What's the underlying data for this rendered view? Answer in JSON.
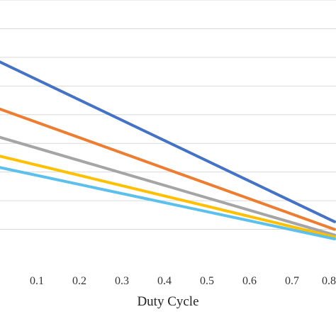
{
  "chart_data": {
    "type": "line",
    "title": "",
    "xlabel": "Duty Cycle",
    "ylabel": "",
    "x_ticks": [
      "0.1",
      "0.2",
      "0.3",
      "0.4",
      "0.5",
      "0.6",
      "0.7",
      "0.8"
    ],
    "xlim": [
      0.0,
      0.8
    ],
    "ylim": [
      0,
      1.35
    ],
    "y_gridlines": [
      0.15,
      0.3,
      0.45,
      0.6,
      0.75,
      0.9,
      1.05,
      1.2,
      1.35
    ],
    "grid": true,
    "legend": "none",
    "series": [
      {
        "color": "#4472C4",
        "x": [
          0.0,
          0.8
        ],
        "y": [
          1.04,
          0.19
        ]
      },
      {
        "color": "#ED7D31",
        "x": [
          0.0,
          0.8
        ],
        "y": [
          0.79,
          0.15
        ]
      },
      {
        "color": "#A5A5A5",
        "x": [
          0.0,
          0.8
        ],
        "y": [
          0.64,
          0.12
        ]
      },
      {
        "color": "#FFC000",
        "x": [
          0.0,
          0.8
        ],
        "y": [
          0.54,
          0.11
        ]
      },
      {
        "color": "#5BC0EB",
        "x": [
          0.0,
          0.8
        ],
        "y": [
          0.48,
          0.1
        ]
      }
    ]
  }
}
